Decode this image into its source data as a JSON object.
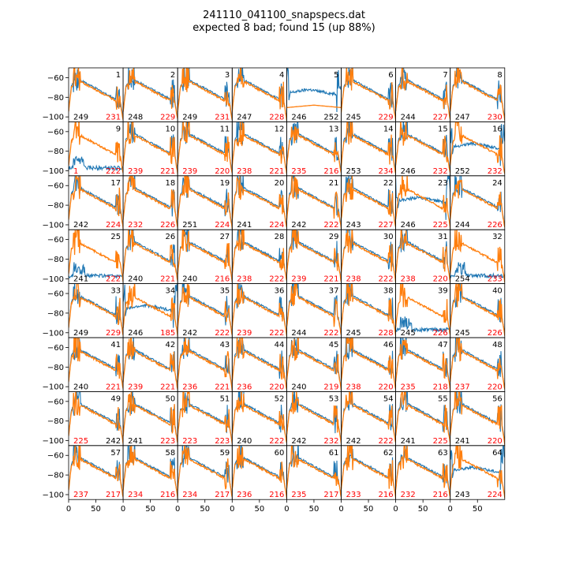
{
  "title": {
    "line1": "241110_041100_snapspecs.dat",
    "line2": "expected 8 bad; found 15 (up 88%)"
  },
  "colors": {
    "series_blue": "#1f77b4",
    "series_orange": "#ff7f0e",
    "label_black": "#000000",
    "label_red": "#ff0000"
  },
  "chart_data": {
    "type": "line",
    "layout": "8x8 grid of small multiples, shared axes",
    "xlim": [
      0,
      100
    ],
    "ylim": [
      -105,
      -50
    ],
    "xticks": [
      0,
      50
    ],
    "yticks": [
      -60,
      -80,
      -100
    ],
    "grid": false,
    "legend": "none",
    "series_colors": [
      "#1f77b4",
      "#ff7f0e"
    ],
    "panels": [
      {
        "id": 1,
        "left": "249",
        "right": "231",
        "left_color": "black",
        "right_color": "red",
        "blue": "normal"
      },
      {
        "id": 2,
        "left": "248",
        "right": "229",
        "left_color": "black",
        "right_color": "red",
        "blue": "normal"
      },
      {
        "id": 3,
        "left": "249",
        "right": "231",
        "left_color": "black",
        "right_color": "red",
        "blue": "normal"
      },
      {
        "id": 4,
        "left": "247",
        "right": "228",
        "left_color": "black",
        "right_color": "red",
        "blue": "normal"
      },
      {
        "id": 5,
        "left": "246",
        "right": "252",
        "left_color": "black",
        "right_color": "black",
        "blue": "high"
      },
      {
        "id": 6,
        "left": "245",
        "right": "229",
        "left_color": "black",
        "right_color": "red",
        "blue": "normal"
      },
      {
        "id": 7,
        "left": "244",
        "right": "227",
        "left_color": "black",
        "right_color": "red",
        "blue": "normal"
      },
      {
        "id": 8,
        "left": "247",
        "right": "230",
        "left_color": "black",
        "right_color": "red",
        "blue": "normal"
      },
      {
        "id": 9,
        "left": "1",
        "right": "222",
        "left_color": "red",
        "right_color": "red",
        "blue": "low"
      },
      {
        "id": 10,
        "left": "239",
        "right": "221",
        "left_color": "red",
        "right_color": "red",
        "blue": "normal"
      },
      {
        "id": 11,
        "left": "239",
        "right": "220",
        "left_color": "red",
        "right_color": "red",
        "blue": "normal"
      },
      {
        "id": 12,
        "left": "238",
        "right": "221",
        "left_color": "red",
        "right_color": "red",
        "blue": "normal"
      },
      {
        "id": 13,
        "left": "235",
        "right": "216",
        "left_color": "red",
        "right_color": "red",
        "blue": "normal"
      },
      {
        "id": 14,
        "left": "253",
        "right": "234",
        "left_color": "black",
        "right_color": "red",
        "blue": "normal"
      },
      {
        "id": 15,
        "left": "246",
        "right": "232",
        "left_color": "black",
        "right_color": "red",
        "blue": "normal"
      },
      {
        "id": 16,
        "left": "252",
        "right": "232",
        "left_color": "black",
        "right_color": "red",
        "blue": "high"
      },
      {
        "id": 17,
        "left": "242",
        "right": "224",
        "left_color": "black",
        "right_color": "red",
        "blue": "normal"
      },
      {
        "id": 18,
        "left": "232",
        "right": "226",
        "left_color": "red",
        "right_color": "red",
        "blue": "normal"
      },
      {
        "id": 19,
        "left": "251",
        "right": "224",
        "left_color": "black",
        "right_color": "red",
        "blue": "normal"
      },
      {
        "id": 20,
        "left": "241",
        "right": "224",
        "left_color": "black",
        "right_color": "red",
        "blue": "normal"
      },
      {
        "id": 21,
        "left": "242",
        "right": "222",
        "left_color": "black",
        "right_color": "red",
        "blue": "normal"
      },
      {
        "id": 22,
        "left": "243",
        "right": "227",
        "left_color": "black",
        "right_color": "red",
        "blue": "normal"
      },
      {
        "id": 23,
        "left": "246",
        "right": "225",
        "left_color": "black",
        "right_color": "red",
        "blue": "high"
      },
      {
        "id": 24,
        "left": "244",
        "right": "226",
        "left_color": "black",
        "right_color": "red",
        "blue": "normal"
      },
      {
        "id": 25,
        "left": "241",
        "right": "222",
        "left_color": "black",
        "right_color": "red",
        "blue": "low"
      },
      {
        "id": 26,
        "left": "240",
        "right": "221",
        "left_color": "black",
        "right_color": "red",
        "blue": "normal"
      },
      {
        "id": 27,
        "left": "240",
        "right": "216",
        "left_color": "black",
        "right_color": "red",
        "blue": "normal"
      },
      {
        "id": 28,
        "left": "238",
        "right": "222",
        "left_color": "red",
        "right_color": "red",
        "blue": "normal"
      },
      {
        "id": 29,
        "left": "239",
        "right": "221",
        "left_color": "red",
        "right_color": "red",
        "blue": "normal"
      },
      {
        "id": 30,
        "left": "238",
        "right": "222",
        "left_color": "red",
        "right_color": "red",
        "blue": "normal"
      },
      {
        "id": 31,
        "left": "238",
        "right": "220",
        "left_color": "red",
        "right_color": "red",
        "blue": "normal"
      },
      {
        "id": 32,
        "left": "254",
        "right": "233",
        "left_color": "black",
        "right_color": "red",
        "blue": "low"
      },
      {
        "id": 33,
        "left": "249",
        "right": "229",
        "left_color": "black",
        "right_color": "red",
        "blue": "normal"
      },
      {
        "id": 34,
        "left": "246",
        "right": "185",
        "left_color": "black",
        "right_color": "red",
        "blue": "high"
      },
      {
        "id": 35,
        "left": "242",
        "right": "222",
        "left_color": "black",
        "right_color": "red",
        "blue": "normal"
      },
      {
        "id": 36,
        "left": "239",
        "right": "222",
        "left_color": "red",
        "right_color": "red",
        "blue": "normal"
      },
      {
        "id": 37,
        "left": "244",
        "right": "222",
        "left_color": "black",
        "right_color": "red",
        "blue": "normal"
      },
      {
        "id": 38,
        "left": "245",
        "right": "228",
        "left_color": "black",
        "right_color": "red",
        "blue": "normal"
      },
      {
        "id": 39,
        "left": "245",
        "right": "226",
        "left_color": "black",
        "right_color": "red",
        "blue": "low"
      },
      {
        "id": 40,
        "left": "245",
        "right": "226",
        "left_color": "black",
        "right_color": "red",
        "blue": "normal"
      },
      {
        "id": 41,
        "left": "240",
        "right": "221",
        "left_color": "black",
        "right_color": "red",
        "blue": "normal"
      },
      {
        "id": 42,
        "left": "239",
        "right": "221",
        "left_color": "red",
        "right_color": "red",
        "blue": "normal"
      },
      {
        "id": 43,
        "left": "236",
        "right": "221",
        "left_color": "red",
        "right_color": "red",
        "blue": "normal"
      },
      {
        "id": 44,
        "left": "236",
        "right": "220",
        "left_color": "red",
        "right_color": "red",
        "blue": "normal"
      },
      {
        "id": 45,
        "left": "240",
        "right": "219",
        "left_color": "black",
        "right_color": "red",
        "blue": "normal"
      },
      {
        "id": 46,
        "left": "238",
        "right": "220",
        "left_color": "red",
        "right_color": "red",
        "blue": "normal"
      },
      {
        "id": 47,
        "left": "235",
        "right": "218",
        "left_color": "red",
        "right_color": "red",
        "blue": "normal"
      },
      {
        "id": 48,
        "left": "237",
        "right": "220",
        "left_color": "red",
        "right_color": "red",
        "blue": "normal"
      },
      {
        "id": 49,
        "left": "225",
        "right": "242",
        "left_color": "red",
        "right_color": "black",
        "blue": "normal"
      },
      {
        "id": 50,
        "left": "241",
        "right": "223",
        "left_color": "black",
        "right_color": "red",
        "blue": "normal"
      },
      {
        "id": 51,
        "left": "223",
        "right": "223",
        "left_color": "red",
        "right_color": "red",
        "blue": "normal"
      },
      {
        "id": 52,
        "left": "240",
        "right": "222",
        "left_color": "black",
        "right_color": "red",
        "blue": "normal"
      },
      {
        "id": 53,
        "left": "242",
        "right": "232",
        "left_color": "black",
        "right_color": "red",
        "blue": "normal"
      },
      {
        "id": 54,
        "left": "242",
        "right": "222",
        "left_color": "black",
        "right_color": "red",
        "blue": "normal"
      },
      {
        "id": 55,
        "left": "241",
        "right": "225",
        "left_color": "black",
        "right_color": "red",
        "blue": "normal"
      },
      {
        "id": 56,
        "left": "241",
        "right": "220",
        "left_color": "black",
        "right_color": "red",
        "blue": "normal"
      },
      {
        "id": 57,
        "left": "237",
        "right": "217",
        "left_color": "red",
        "right_color": "red",
        "blue": "normal"
      },
      {
        "id": 58,
        "left": "234",
        "right": "216",
        "left_color": "red",
        "right_color": "red",
        "blue": "normal"
      },
      {
        "id": 59,
        "left": "234",
        "right": "217",
        "left_color": "red",
        "right_color": "red",
        "blue": "normal"
      },
      {
        "id": 60,
        "left": "236",
        "right": "216",
        "left_color": "red",
        "right_color": "red",
        "blue": "normal"
      },
      {
        "id": 61,
        "left": "235",
        "right": "217",
        "left_color": "red",
        "right_color": "red",
        "blue": "normal"
      },
      {
        "id": 62,
        "left": "233",
        "right": "216",
        "left_color": "red",
        "right_color": "red",
        "blue": "normal"
      },
      {
        "id": 63,
        "left": "232",
        "right": "216",
        "left_color": "red",
        "right_color": "red",
        "blue": "normal"
      },
      {
        "id": 64,
        "left": "243",
        "right": "224",
        "left_color": "black",
        "right_color": "red",
        "blue": "high"
      }
    ]
  }
}
